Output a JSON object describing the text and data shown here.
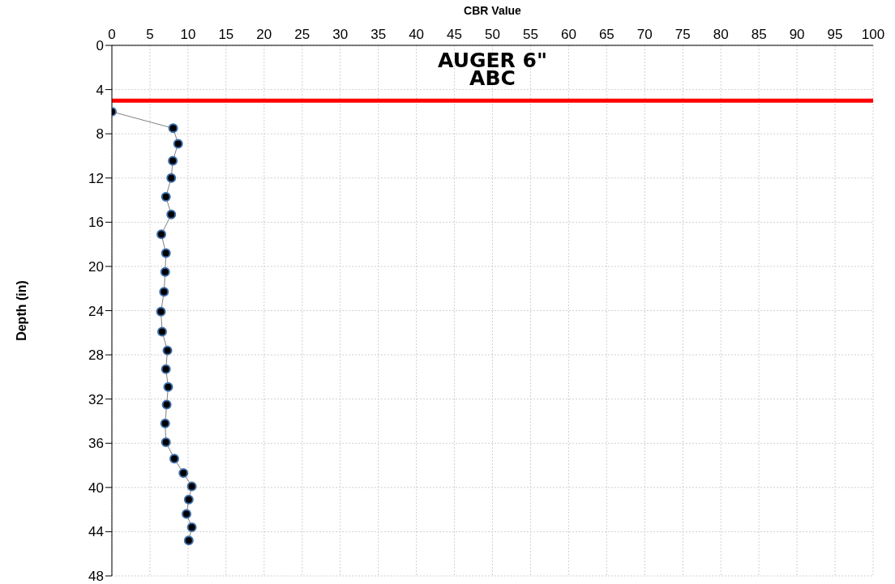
{
  "chart_data": {
    "type": "line",
    "xlabel": "CBR Value",
    "ylabel": "Depth (in)",
    "annotations": [
      "AUGER 6\"",
      "ABC"
    ],
    "series": [
      {
        "color": "#000000",
        "x": [
          0,
          8.05,
          8.7,
          8.0,
          7.8,
          7.1,
          7.8,
          6.5,
          7.1,
          7.0,
          6.85,
          6.45,
          6.6,
          7.3,
          7.1,
          7.4,
          7.2,
          7.0,
          7.1,
          8.2,
          9.4,
          10.5,
          10.1,
          9.8,
          10.5,
          10.1
        ],
        "values": [
          6,
          7.5,
          8.9,
          10.45,
          12.0,
          13.7,
          15.3,
          17.1,
          18.8,
          20.5,
          22.3,
          24.1,
          25.9,
          27.6,
          29.3,
          30.9,
          32.5,
          34.2,
          35.9,
          37.4,
          38.7,
          39.9,
          41.1,
          42.4,
          43.6,
          44.8
        ]
      }
    ],
    "xlim": [
      0,
      100
    ],
    "xticks": [
      0,
      5,
      10,
      15,
      20,
      25,
      30,
      35,
      40,
      45,
      50,
      55,
      60,
      65,
      70,
      75,
      80,
      85,
      90,
      95,
      100
    ],
    "ylim": [
      48,
      0
    ],
    "yticks": [
      0,
      4,
      8,
      12,
      16,
      20,
      24,
      28,
      32,
      36,
      40,
      44,
      48
    ],
    "ref_lines": [
      {
        "axis": "y",
        "value": 5,
        "color": "#ff0000"
      }
    ],
    "grid": true,
    "marker": "circle"
  }
}
